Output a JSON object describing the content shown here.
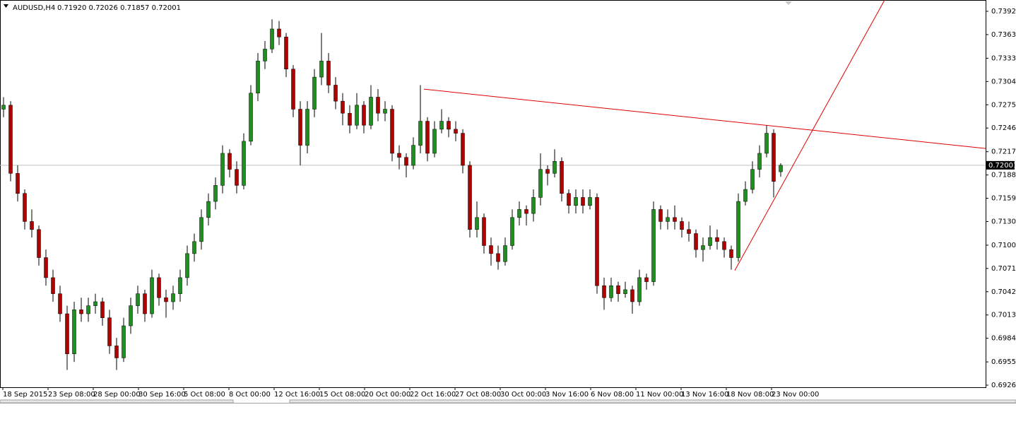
{
  "chart_data": {
    "type": "candlestick",
    "header": {
      "symbol": "AUDUSD,H4",
      "quote": "0.71920 0.72026 0.71857 0.72001"
    },
    "bull_color": "#1f8f1f",
    "bear_color": "#b00000",
    "wick_color": "#000000",
    "ylim": [
      0.69234,
      0.74061
    ],
    "yticks": [
      {
        "value": 0.7392,
        "label": "0.73920"
      },
      {
        "value": 0.7363,
        "label": "0.73630"
      },
      0.73335,
      0.73045,
      0.72755,
      0.72465,
      {
        "value": 0.7217,
        "label": "0.72170"
      },
      {
        "value": 0.7188,
        "label": "0.71880"
      },
      {
        "value": 0.7159,
        "label": "0.71590"
      },
      {
        "value": 0.713,
        "label": "0.71300"
      },
      0.71005,
      0.70715,
      0.70425,
      0.70135,
      0.69845,
      {
        "value": 0.6955,
        "label": "0.69550"
      },
      {
        "value": 0.6926,
        "label": "0.69260"
      }
    ],
    "x_labels": [
      "18 Sep 2015",
      "23 Sep 08:00",
      "28 Sep 00:00",
      "30 Sep 16:00",
      "5 Oct 08:00",
      "8 Oct 00:00",
      "12 Oct 16:00",
      "15 Oct 08:00",
      "20 Oct 00:00",
      "22 Oct 16:00",
      "27 Oct 08:00",
      "30 Oct 00:00",
      "3 Nov 16:00",
      "6 Nov 08:00",
      "11 Nov 00:00",
      "13 Nov 16:00",
      "18 Nov 08:00",
      "23 Nov 00:00"
    ],
    "price_line": 0.72001,
    "trendlines": [
      {
        "x": [
          59.5,
          139
        ],
        "y": [
          0.7295,
          0.7221
        ],
        "color": "#e00000"
      },
      {
        "x": [
          103.5,
          124.7
        ],
        "y": [
          0.7069,
          0.7406
        ],
        "color": "#e00000"
      }
    ],
    "ohlc": [
      [
        0.727,
        0.7285,
        0.726,
        0.7275
      ],
      [
        0.7275,
        0.728,
        0.718,
        0.719
      ],
      [
        0.719,
        0.72,
        0.7155,
        0.7165
      ],
      [
        0.7165,
        0.717,
        0.712,
        0.713
      ],
      [
        0.713,
        0.7145,
        0.711,
        0.712
      ],
      [
        0.712,
        0.7125,
        0.7075,
        0.7085
      ],
      [
        0.7085,
        0.7095,
        0.705,
        0.706
      ],
      [
        0.706,
        0.707,
        0.703,
        0.704
      ],
      [
        0.704,
        0.705,
        0.7005,
        0.7015
      ],
      [
        0.7015,
        0.7025,
        0.6945,
        0.6965
      ],
      [
        0.6965,
        0.703,
        0.6955,
        0.702
      ],
      [
        0.702,
        0.7035,
        0.7005,
        0.7015
      ],
      [
        0.7015,
        0.7035,
        0.7005,
        0.7025
      ],
      [
        0.7025,
        0.704,
        0.7015,
        0.703
      ],
      [
        0.703,
        0.7035,
        0.7,
        0.701
      ],
      [
        0.701,
        0.702,
        0.6965,
        0.6975
      ],
      [
        0.6975,
        0.6985,
        0.6945,
        0.696
      ],
      [
        0.696,
        0.701,
        0.6955,
        0.7
      ],
      [
        0.7,
        0.7035,
        0.699,
        0.7025
      ],
      [
        0.7025,
        0.705,
        0.7015,
        0.704
      ],
      [
        0.704,
        0.7045,
        0.7005,
        0.7015
      ],
      [
        0.7015,
        0.707,
        0.701,
        0.706
      ],
      [
        0.706,
        0.7065,
        0.7025,
        0.7035
      ],
      [
        0.7035,
        0.7045,
        0.701,
        0.703
      ],
      [
        0.703,
        0.705,
        0.702,
        0.704
      ],
      [
        0.704,
        0.707,
        0.703,
        0.706
      ],
      [
        0.706,
        0.71,
        0.705,
        0.709
      ],
      [
        0.709,
        0.7115,
        0.708,
        0.7105
      ],
      [
        0.7105,
        0.7145,
        0.7095,
        0.7135
      ],
      [
        0.7135,
        0.7165,
        0.7125,
        0.7155
      ],
      [
        0.7155,
        0.7185,
        0.7145,
        0.7175
      ],
      [
        0.7175,
        0.7225,
        0.7165,
        0.7215
      ],
      [
        0.7215,
        0.722,
        0.7185,
        0.7195
      ],
      [
        0.7195,
        0.7205,
        0.7165,
        0.7175
      ],
      [
        0.7175,
        0.724,
        0.717,
        0.723
      ],
      [
        0.723,
        0.73,
        0.7225,
        0.729
      ],
      [
        0.729,
        0.734,
        0.728,
        0.733
      ],
      [
        0.733,
        0.7355,
        0.732,
        0.7345
      ],
      [
        0.7345,
        0.7382,
        0.734,
        0.737
      ],
      [
        0.737,
        0.738,
        0.735,
        0.736
      ],
      [
        0.736,
        0.7365,
        0.731,
        0.732
      ],
      [
        0.732,
        0.7325,
        0.726,
        0.727
      ],
      [
        0.727,
        0.728,
        0.72,
        0.7225
      ],
      [
        0.7225,
        0.728,
        0.7215,
        0.727
      ],
      [
        0.727,
        0.732,
        0.726,
        0.731
      ],
      [
        0.731,
        0.7365,
        0.73,
        0.733
      ],
      [
        0.733,
        0.734,
        0.729,
        0.73
      ],
      [
        0.73,
        0.731,
        0.727,
        0.728
      ],
      [
        0.728,
        0.729,
        0.725,
        0.7265
      ],
      [
        0.7265,
        0.7275,
        0.724,
        0.725
      ],
      [
        0.725,
        0.729,
        0.7245,
        0.7275
      ],
      [
        0.7275,
        0.728,
        0.724,
        0.725
      ],
      [
        0.725,
        0.73,
        0.7245,
        0.7285
      ],
      [
        0.7285,
        0.7295,
        0.7255,
        0.7265
      ],
      [
        0.7265,
        0.728,
        0.7255,
        0.727
      ],
      [
        0.727,
        0.7275,
        0.7205,
        0.7215
      ],
      [
        0.7215,
        0.7225,
        0.7195,
        0.721
      ],
      [
        0.721,
        0.7215,
        0.7185,
        0.72
      ],
      [
        0.72,
        0.7235,
        0.7195,
        0.7225
      ],
      [
        0.7225,
        0.73,
        0.7215,
        0.7255
      ],
      [
        0.7255,
        0.726,
        0.7205,
        0.7215
      ],
      [
        0.7215,
        0.7255,
        0.721,
        0.7245
      ],
      [
        0.7245,
        0.727,
        0.724,
        0.7255
      ],
      [
        0.7255,
        0.726,
        0.7235,
        0.7245
      ],
      [
        0.7245,
        0.7255,
        0.723,
        0.724
      ],
      [
        0.724,
        0.7245,
        0.719,
        0.72
      ],
      [
        0.72,
        0.7205,
        0.711,
        0.712
      ],
      [
        0.712,
        0.7155,
        0.711,
        0.7135
      ],
      [
        0.7135,
        0.714,
        0.709,
        0.71
      ],
      [
        0.71,
        0.711,
        0.7075,
        0.709
      ],
      [
        0.709,
        0.71,
        0.707,
        0.708
      ],
      [
        0.708,
        0.711,
        0.7075,
        0.71
      ],
      [
        0.71,
        0.7145,
        0.7095,
        0.7135
      ],
      [
        0.7135,
        0.7155,
        0.7125,
        0.7145
      ],
      [
        0.7145,
        0.715,
        0.7125,
        0.714
      ],
      [
        0.714,
        0.717,
        0.713,
        0.716
      ],
      [
        0.716,
        0.7215,
        0.715,
        0.7195
      ],
      [
        0.7195,
        0.72,
        0.7175,
        0.719
      ],
      [
        0.719,
        0.722,
        0.7185,
        0.7205
      ],
      [
        0.7205,
        0.721,
        0.7155,
        0.7165
      ],
      [
        0.7165,
        0.717,
        0.714,
        0.715
      ],
      [
        0.715,
        0.717,
        0.714,
        0.716
      ],
      [
        0.716,
        0.717,
        0.714,
        0.715
      ],
      [
        0.715,
        0.717,
        0.7145,
        0.716
      ],
      [
        0.716,
        0.7165,
        0.704,
        0.705
      ],
      [
        0.705,
        0.706,
        0.702,
        0.7035
      ],
      [
        0.7035,
        0.706,
        0.703,
        0.705
      ],
      [
        0.705,
        0.7055,
        0.703,
        0.704
      ],
      [
        0.704,
        0.7055,
        0.7035,
        0.7045
      ],
      [
        0.7045,
        0.705,
        0.7015,
        0.703
      ],
      [
        0.703,
        0.707,
        0.7025,
        0.706
      ],
      [
        0.706,
        0.7065,
        0.7045,
        0.7055
      ],
      [
        0.7055,
        0.7155,
        0.705,
        0.7145
      ],
      [
        0.7145,
        0.715,
        0.712,
        0.713
      ],
      [
        0.713,
        0.7145,
        0.712,
        0.7135
      ],
      [
        0.7135,
        0.715,
        0.712,
        0.713
      ],
      [
        0.713,
        0.7135,
        0.711,
        0.712
      ],
      [
        0.712,
        0.713,
        0.7105,
        0.7115
      ],
      [
        0.7115,
        0.712,
        0.7085,
        0.7095
      ],
      [
        0.7095,
        0.711,
        0.708,
        0.71
      ],
      [
        0.71,
        0.7125,
        0.7095,
        0.711
      ],
      [
        0.711,
        0.712,
        0.7095,
        0.7105
      ],
      [
        0.7105,
        0.711,
        0.7085,
        0.7095
      ],
      [
        0.7095,
        0.71,
        0.707,
        0.7085
      ],
      [
        0.7085,
        0.7165,
        0.708,
        0.7155
      ],
      [
        0.7155,
        0.718,
        0.715,
        0.717
      ],
      [
        0.717,
        0.7205,
        0.7165,
        0.7195
      ],
      [
        0.7195,
        0.7225,
        0.7185,
        0.7215
      ],
      [
        0.7215,
        0.725,
        0.721,
        0.724
      ],
      [
        0.724,
        0.7245,
        0.716,
        0.718
      ],
      [
        0.7192,
        0.72026,
        0.71857,
        0.72001
      ]
    ]
  }
}
